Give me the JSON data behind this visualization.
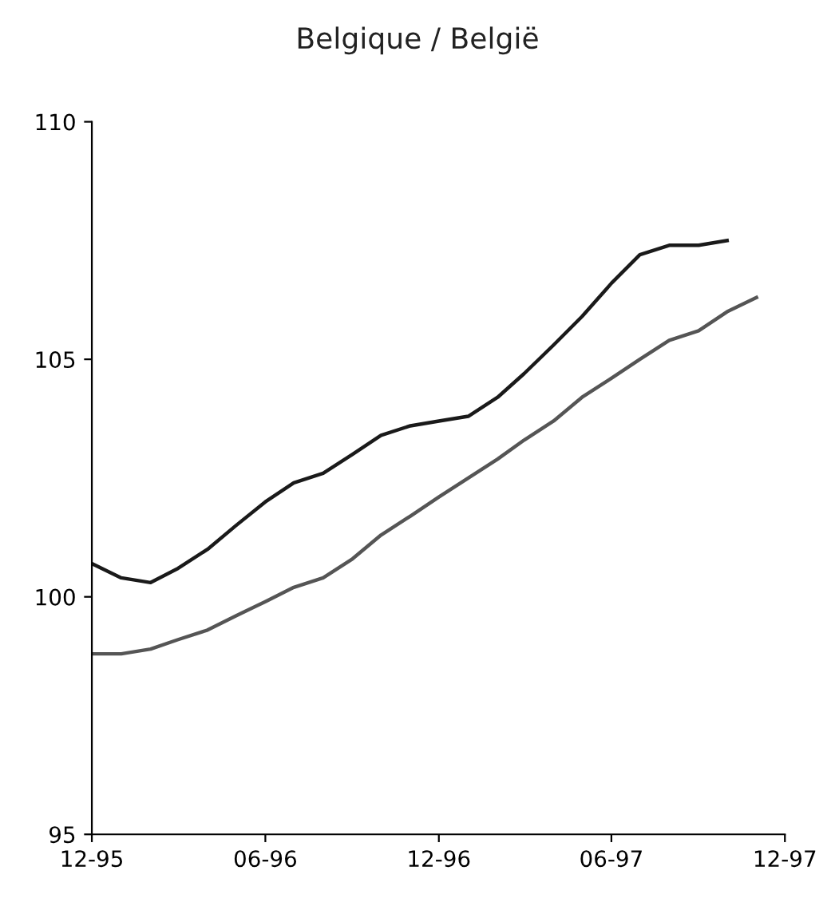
{
  "chart_data": {
    "type": "line",
    "title": "Belgique / België",
    "x": [
      "1995-12",
      "1996-01",
      "1996-02",
      "1996-03",
      "1996-04",
      "1996-05",
      "1996-06",
      "1996-07",
      "1996-08",
      "1996-09",
      "1996-10",
      "1996-11",
      "1996-12",
      "1997-01",
      "1997-02",
      "1997-03",
      "1997-04",
      "1997-05",
      "1997-06",
      "1997-07",
      "1997-08",
      "1997-09",
      "1997-10",
      "1997-11"
    ],
    "series": [
      {
        "color": "#1a1a1a",
        "values": [
          100.7,
          100.4,
          100.3,
          100.6,
          101.0,
          101.5,
          102.0,
          102.4,
          102.6,
          103.0,
          103.4,
          103.6,
          103.7,
          103.8,
          104.2,
          104.7,
          105.3,
          105.9,
          106.6,
          107.2,
          107.4,
          107.4,
          107.5,
          null
        ]
      },
      {
        "color": "#555555",
        "values": [
          98.8,
          98.8,
          98.9,
          99.1,
          99.3,
          99.6,
          99.9,
          100.2,
          100.4,
          100.8,
          101.3,
          101.7,
          102.1,
          102.5,
          102.9,
          103.3,
          103.7,
          104.2,
          104.6,
          105.0,
          105.4,
          105.6,
          106.0,
          106.3
        ]
      }
    ],
    "xlim": [
      "1995-12",
      "1997-12"
    ],
    "xticks": [
      {
        "value": "1995-12",
        "label": "12-95"
      },
      {
        "value": "1996-06",
        "label": "06-96"
      },
      {
        "value": "1996-12",
        "label": "12-96"
      },
      {
        "value": "1997-06",
        "label": "06-97"
      },
      {
        "value": "1997-12",
        "label": "12-97"
      }
    ],
    "ylim": [
      95,
      110
    ],
    "yticks": [
      95,
      100,
      105,
      110
    ],
    "grid": false,
    "legend": false
  }
}
